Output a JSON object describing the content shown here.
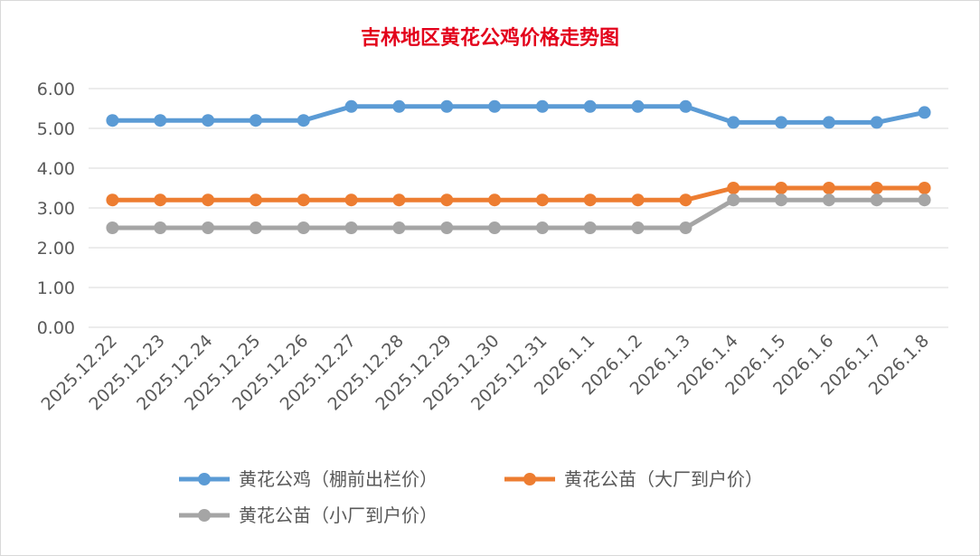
{
  "chart_data": {
    "type": "line",
    "title": "吉林地区黄花公鸡价格走势图",
    "xlabel": "",
    "ylabel": "",
    "ylim": [
      0,
      6
    ],
    "yticks": [
      "0.00",
      "1.00",
      "2.00",
      "3.00",
      "4.00",
      "5.00",
      "6.00"
    ],
    "categories": [
      "2025.12.22",
      "2025.12.23",
      "2025.12.24",
      "2025.12.25",
      "2025.12.26",
      "2025.12.27",
      "2025.12.28",
      "2025.12.29",
      "2025.12.30",
      "2025.12.31",
      "2026.1.1",
      "2026.1.2",
      "2026.1.3",
      "2026.1.4",
      "2026.1.5",
      "2026.1.6",
      "2026.1.7",
      "2026.1.8"
    ],
    "series": [
      {
        "name": "黄花公鸡（棚前出栏价）",
        "color": "#5b9bd5",
        "values": [
          5.2,
          5.2,
          5.2,
          5.2,
          5.2,
          5.55,
          5.55,
          5.55,
          5.55,
          5.55,
          5.55,
          5.55,
          5.55,
          5.15,
          5.15,
          5.15,
          5.15,
          5.4
        ]
      },
      {
        "name": "黄花公苗（大厂到户价）",
        "color": "#ed7d31",
        "values": [
          3.2,
          3.2,
          3.2,
          3.2,
          3.2,
          3.2,
          3.2,
          3.2,
          3.2,
          3.2,
          3.2,
          3.2,
          3.2,
          3.5,
          3.5,
          3.5,
          3.5,
          3.5
        ]
      },
      {
        "name": "黄花公苗（小厂到户价）",
        "color": "#a5a5a5",
        "values": [
          2.5,
          2.5,
          2.5,
          2.5,
          2.5,
          2.5,
          2.5,
          2.5,
          2.5,
          2.5,
          2.5,
          2.5,
          2.5,
          3.2,
          3.2,
          3.2,
          3.2,
          3.2
        ]
      }
    ],
    "grid": true,
    "legend": "bottom"
  }
}
